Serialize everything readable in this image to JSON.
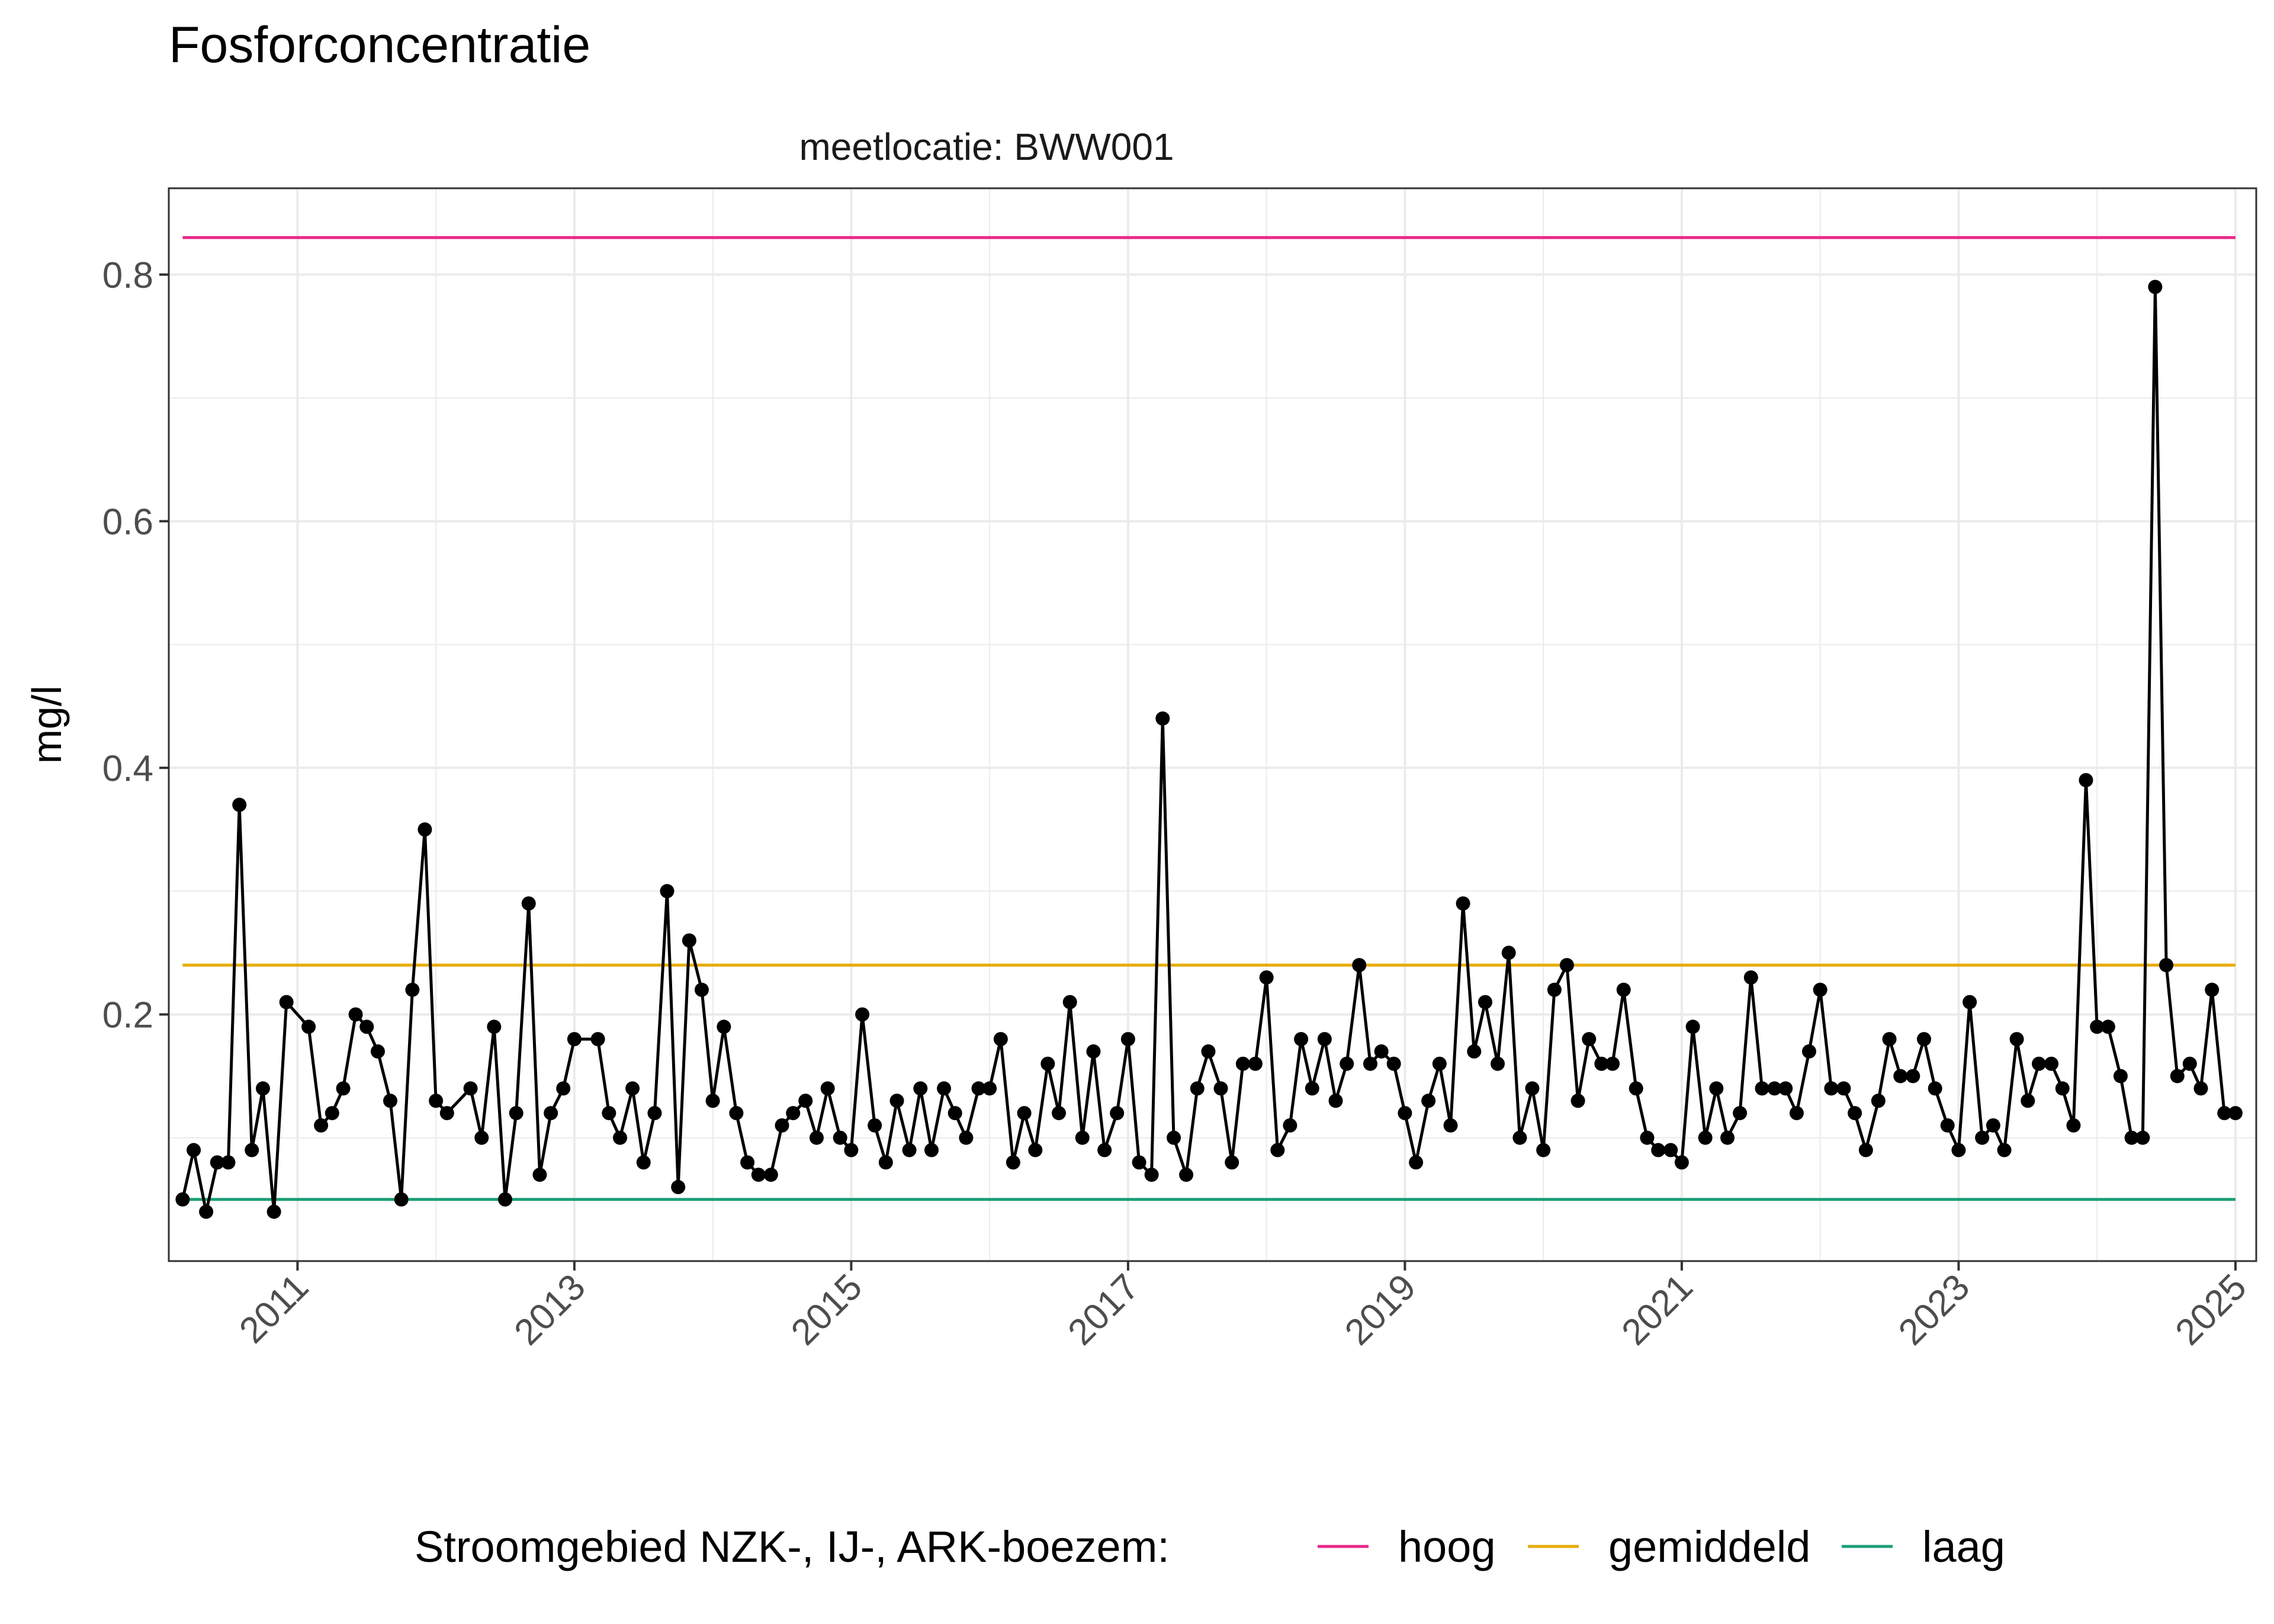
{
  "chart_data": {
    "type": "line",
    "title": "Fosforconcentratie",
    "facet_label": "meetlocatie: BWW001",
    "ylabel": "mg/l",
    "xlabel": "",
    "xlim": [
      2010.07,
      2025.15
    ],
    "ylim": [
      0.0,
      0.87
    ],
    "x_ticks": [
      2011,
      2013,
      2015,
      2017,
      2019,
      2021,
      2023,
      2025
    ],
    "y_ticks": [
      0.2,
      0.4,
      0.6,
      0.8
    ],
    "y_tick_labels": [
      "0.2",
      "0.4",
      "0.6",
      "0.8"
    ],
    "grid": true,
    "legend": {
      "position": "bottom",
      "title": "Stroomgebied NZK-, IJ-, ARK-boezem:",
      "entries": [
        {
          "label": "hoog",
          "color": "#e7298a"
        },
        {
          "label": "gemiddeld",
          "color": "#e6ab02"
        },
        {
          "label": "laag",
          "color": "#1b9e77"
        }
      ]
    },
    "reference_lines": [
      {
        "name": "hoog",
        "value": 0.83,
        "color": "#e7298a"
      },
      {
        "name": "gemiddeld",
        "value": 0.24,
        "color": "#e6ab02"
      },
      {
        "name": "laag",
        "value": 0.05,
        "color": "#1b9e77"
      }
    ],
    "series": [
      {
        "color": "#000000",
        "x": [
          2010.17,
          2010.25,
          2010.34,
          2010.42,
          2010.5,
          2010.58,
          2010.67,
          2010.75,
          2010.83,
          2010.92,
          2011.08,
          2011.17,
          2011.25,
          2011.33,
          2011.42,
          2011.5,
          2011.58,
          2011.67,
          2011.75,
          2011.83,
          2011.92,
          2012.0,
          2012.08,
          2012.25,
          2012.33,
          2012.42,
          2012.5,
          2012.58,
          2012.67,
          2012.75,
          2012.83,
          2012.92,
          2013.0,
          2013.17,
          2013.25,
          2013.33,
          2013.42,
          2013.5,
          2013.58,
          2013.67,
          2013.75,
          2013.83,
          2013.92,
          2014.0,
          2014.08,
          2014.17,
          2014.25,
          2014.33,
          2014.42,
          2014.5,
          2014.58,
          2014.67,
          2014.75,
          2014.83,
          2014.92,
          2015.0,
          2015.08,
          2015.17,
          2015.25,
          2015.33,
          2015.42,
          2015.5,
          2015.58,
          2015.67,
          2015.75,
          2015.83,
          2015.92,
          2016.0,
          2016.08,
          2016.17,
          2016.25,
          2016.33,
          2016.42,
          2016.5,
          2016.58,
          2016.67,
          2016.75,
          2016.83,
          2016.92,
          2017.0,
          2017.08,
          2017.17,
          2017.25,
          2017.33,
          2017.42,
          2017.5,
          2017.58,
          2017.67,
          2017.75,
          2017.83,
          2017.92,
          2018.0,
          2018.08,
          2018.17,
          2018.25,
          2018.33,
          2018.42,
          2018.5,
          2018.58,
          2018.67,
          2018.75,
          2018.83,
          2018.92,
          2019.0,
          2019.08,
          2019.17,
          2019.25,
          2019.33,
          2019.42,
          2019.5,
          2019.58,
          2019.67,
          2019.75,
          2019.83,
          2019.92,
          2020.0,
          2020.08,
          2020.17,
          2020.25,
          2020.33,
          2020.42,
          2020.5,
          2020.58,
          2020.67,
          2020.75,
          2020.83,
          2020.92,
          2021.0,
          2021.08,
          2021.17,
          2021.25,
          2021.33,
          2021.42,
          2021.5,
          2021.58,
          2021.67,
          2021.75,
          2021.83,
          2021.92,
          2022.0,
          2022.08,
          2022.17,
          2022.25,
          2022.33,
          2022.42,
          2022.5,
          2022.58,
          2022.67,
          2022.75,
          2022.83,
          2022.92,
          2023.0,
          2023.08,
          2023.17,
          2023.25,
          2023.33,
          2023.42,
          2023.5,
          2023.58,
          2023.67,
          2023.75,
          2023.83,
          2023.92,
          2024.0,
          2024.08,
          2024.17,
          2024.25,
          2024.33,
          2024.42,
          2024.5,
          2024.58,
          2024.67,
          2024.75,
          2024.83,
          2024.92,
          2025.0
        ],
        "y": [
          0.05,
          0.09,
          0.04,
          0.08,
          0.08,
          0.37,
          0.09,
          0.14,
          0.04,
          0.21,
          0.19,
          0.11,
          0.12,
          0.14,
          0.2,
          0.19,
          0.17,
          0.13,
          0.05,
          0.22,
          0.35,
          0.13,
          0.12,
          0.14,
          0.1,
          0.19,
          0.05,
          0.12,
          0.29,
          0.07,
          0.12,
          0.14,
          0.18,
          0.18,
          0.12,
          0.1,
          0.14,
          0.08,
          0.12,
          0.3,
          0.06,
          0.26,
          0.22,
          0.13,
          0.19,
          0.12,
          0.08,
          0.07,
          0.07,
          0.11,
          0.12,
          0.13,
          0.1,
          0.14,
          0.1,
          0.09,
          0.2,
          0.11,
          0.08,
          0.13,
          0.09,
          0.14,
          0.09,
          0.14,
          0.12,
          0.1,
          0.14,
          0.14,
          0.18,
          0.08,
          0.12,
          0.09,
          0.16,
          0.12,
          0.21,
          0.1,
          0.17,
          0.09,
          0.12,
          0.18,
          0.08,
          0.07,
          0.44,
          0.1,
          0.07,
          0.14,
          0.17,
          0.14,
          0.08,
          0.16,
          0.16,
          0.23,
          0.09,
          0.11,
          0.18,
          0.14,
          0.18,
          0.13,
          0.16,
          0.24,
          0.16,
          0.17,
          0.16,
          0.12,
          0.08,
          0.13,
          0.16,
          0.11,
          0.29,
          0.17,
          0.21,
          0.16,
          0.25,
          0.1,
          0.14,
          0.09,
          0.22,
          0.24,
          0.13,
          0.18,
          0.16,
          0.16,
          0.22,
          0.14,
          0.1,
          0.09,
          0.09,
          0.08,
          0.19,
          0.1,
          0.14,
          0.1,
          0.12,
          0.23,
          0.14,
          0.14,
          0.14,
          0.12,
          0.17,
          0.22,
          0.14,
          0.14,
          0.12,
          0.09,
          0.13,
          0.18,
          0.15,
          0.15,
          0.18,
          0.14,
          0.11,
          0.09,
          0.21,
          0.1,
          0.11,
          0.09,
          0.18,
          0.13,
          0.16,
          0.16,
          0.14,
          0.11,
          0.39,
          0.19,
          0.19,
          0.15,
          0.1,
          0.1,
          0.79,
          0.24,
          0.15,
          0.16,
          0.14,
          0.22,
          0.12,
          0.12
        ]
      }
    ]
  }
}
